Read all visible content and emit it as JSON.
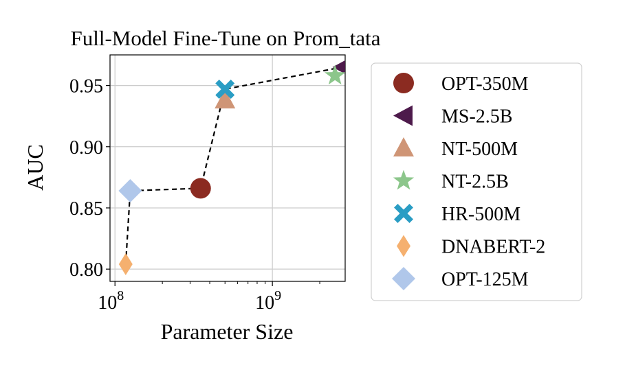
{
  "chart_data": {
    "type": "scatter",
    "title": "Full-Model Fine-Tune on Prom_tata",
    "xlabel": "Parameter Size",
    "ylabel": "AUC",
    "xscale": "log",
    "xlim": [
      93000000,
      2900000000
    ],
    "ylim": [
      0.79,
      0.975
    ],
    "xticks": [
      {
        "value": 100000000,
        "base": "10",
        "exp": "8"
      },
      {
        "value": 1000000000,
        "base": "10",
        "exp": "9"
      }
    ],
    "yticks": [
      {
        "value": 0.8,
        "label": "0.80"
      },
      {
        "value": 0.85,
        "label": "0.85"
      },
      {
        "value": 0.9,
        "label": "0.90"
      },
      {
        "value": 0.95,
        "label": "0.95"
      }
    ],
    "grid": true,
    "legend_position": "outside-right",
    "series": [
      {
        "name": "OPT-350M",
        "x": 350000000,
        "y": 0.866,
        "marker": "circle",
        "color": "#8b2b21"
      },
      {
        "name": "MS-2.5B",
        "x": 2800000000,
        "y": 0.965,
        "marker": "triangle-left",
        "color": "#4d1a4b"
      },
      {
        "name": "NT-500M",
        "x": 500000000,
        "y": 0.938,
        "marker": "triangle-up",
        "color": "#cf9576"
      },
      {
        "name": "NT-2.5B",
        "x": 2500000000,
        "y": 0.958,
        "marker": "star",
        "color": "#8cc68b"
      },
      {
        "name": "HR-500M",
        "x": 500000000,
        "y": 0.947,
        "marker": "x",
        "color": "#2a9dc4"
      },
      {
        "name": "DNABERT-2",
        "x": 117000000,
        "y": 0.804,
        "marker": "thin-diamond",
        "color": "#f5b06f"
      },
      {
        "name": "OPT-125M",
        "x": 125000000,
        "y": 0.864,
        "marker": "diamond",
        "color": "#b0c7ea"
      }
    ],
    "trend_line": {
      "style": "dashed",
      "color": "#000000",
      "points": [
        {
          "x": 117000000,
          "y": 0.804
        },
        {
          "x": 125000000,
          "y": 0.864
        },
        {
          "x": 350000000,
          "y": 0.866
        },
        {
          "x": 500000000,
          "y": 0.947
        },
        {
          "x": 2800000000,
          "y": 0.965
        }
      ]
    }
  }
}
